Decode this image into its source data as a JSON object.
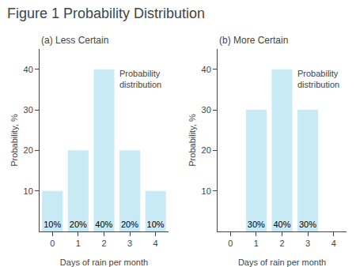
{
  "title": "Figure 1 Probability Distribution",
  "chart_data": [
    {
      "type": "bar",
      "title": "(a) Less Certain",
      "x": [
        0,
        1,
        2,
        3,
        4
      ],
      "values": [
        10,
        20,
        40,
        20,
        10
      ],
      "data_labels": true,
      "value_labels": [
        "10%",
        "20%",
        "40%",
        "20%",
        "10%"
      ],
      "xlabel": "Days of rain per month",
      "ylabel": "Probability, %",
      "xlim": [
        -0.5,
        4.5
      ],
      "xticks": [
        0,
        1,
        2,
        3,
        4
      ],
      "ylim": [
        0,
        45
      ],
      "yticks": [
        10,
        20,
        30,
        40
      ],
      "grid": false,
      "color": "#c8eaf5",
      "annotations": [
        "Probability\ndistribution"
      ]
    },
    {
      "type": "bar",
      "title": "(b) More Certain",
      "x": [
        0,
        1,
        2,
        3,
        4
      ],
      "values": [
        0,
        30,
        40,
        30,
        0
      ],
      "data_labels": true,
      "value_labels": [
        null,
        "30%",
        "40%",
        "30%",
        null
      ],
      "xlabel": "Days of rain per month",
      "ylabel": "Probability, %",
      "xlim": [
        -0.5,
        4.5
      ],
      "xticks": [
        0,
        1,
        2,
        3,
        4
      ],
      "ylim": [
        0,
        45
      ],
      "yticks": [
        10,
        20,
        30,
        40
      ],
      "grid": false,
      "color": "#c8eaf5",
      "annotations": [
        "Probability\ndistribution"
      ]
    }
  ]
}
